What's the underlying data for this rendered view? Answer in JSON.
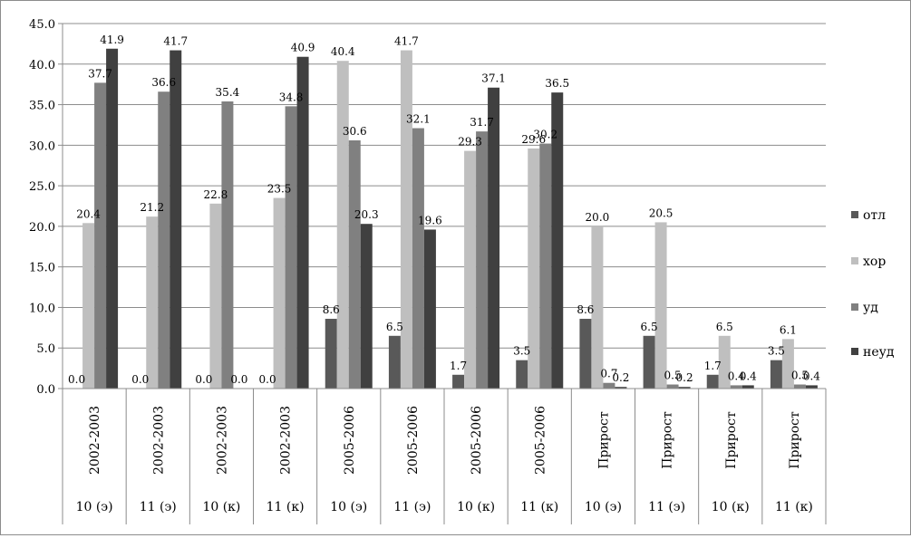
{
  "chart_data": {
    "type": "bar",
    "categories": [
      {
        "primary": "2002-2003",
        "secondary": "10 (э)"
      },
      {
        "primary": "2002-2003",
        "secondary": "11 (э)"
      },
      {
        "primary": "2002-2003",
        "secondary": "10 (к)"
      },
      {
        "primary": "2002-2003",
        "secondary": "11 (к)"
      },
      {
        "primary": "2005-2006",
        "secondary": "10 (э)"
      },
      {
        "primary": "2005-2006",
        "secondary": "11 (э)"
      },
      {
        "primary": "2005-2006",
        "secondary": "10 (к)"
      },
      {
        "primary": "2005-2006",
        "secondary": "11 (к)"
      },
      {
        "primary": "Прирост",
        "secondary": "10 (э)"
      },
      {
        "primary": "Прирост",
        "secondary": "11 (э)"
      },
      {
        "primary": "Прирост",
        "secondary": "10 (к)"
      },
      {
        "primary": "Прирост",
        "secondary": "11 (к)"
      }
    ],
    "series": [
      {
        "name": "отл",
        "color": "#595959",
        "values": [
          0.0,
          0.0,
          0.0,
          0.0,
          8.6,
          6.5,
          1.7,
          3.5,
          8.6,
          6.5,
          1.7,
          3.5
        ]
      },
      {
        "name": "хор",
        "color": "#bfbfbf",
        "values": [
          20.4,
          21.2,
          22.8,
          23.5,
          40.4,
          41.7,
          29.3,
          29.6,
          20.0,
          20.5,
          6.5,
          6.1
        ]
      },
      {
        "name": "уд",
        "color": "#808080",
        "values": [
          37.7,
          36.6,
          35.4,
          34.8,
          30.6,
          32.1,
          31.7,
          30.2,
          0.7,
          0.5,
          0.4,
          0.5
        ]
      },
      {
        "name": "неуд",
        "color": "#404040",
        "values": [
          41.9,
          41.7,
          0.0,
          40.9,
          20.3,
          19.6,
          37.1,
          36.5,
          0.2,
          0.2,
          0.4,
          0.4
        ]
      }
    ],
    "data_labels": [
      [
        "0.0",
        "0.0",
        "0.0",
        "0.0",
        "8.6",
        "6.5",
        "1.7",
        "3.5",
        "8.6",
        "6.5",
        "1.7",
        "3.5"
      ],
      [
        "20.4",
        "21.2",
        "22.8",
        "23.5",
        "40.4",
        "41.7",
        "29.3",
        "29.6",
        "20.0",
        "20.5",
        "6.5",
        "6.1"
      ],
      [
        "37.7",
        "36.6",
        "35.4",
        "34.8",
        "30.6",
        "32.1",
        "31.7",
        "30.2",
        "0.7",
        "0.5",
        "0.4",
        "0.5"
      ],
      [
        "41.9",
        "41.7",
        "0.0",
        "40.9",
        "20.3",
        "19.6",
        "37.1",
        "36.5",
        "0.2",
        "0.2",
        "0.4",
        "0.4"
      ]
    ],
    "ylim": [
      0,
      45
    ],
    "yticks": [
      0,
      5,
      10,
      15,
      20,
      25,
      30,
      35,
      40,
      45
    ],
    "ytick_labels": [
      "0.0",
      "5.0",
      "10.0",
      "15.0",
      "20.0",
      "25.0",
      "30.0",
      "35.0",
      "40.0",
      "45.0"
    ],
    "grid": true,
    "legend_position": "right",
    "title": "",
    "xlabel": "",
    "ylabel": ""
  }
}
